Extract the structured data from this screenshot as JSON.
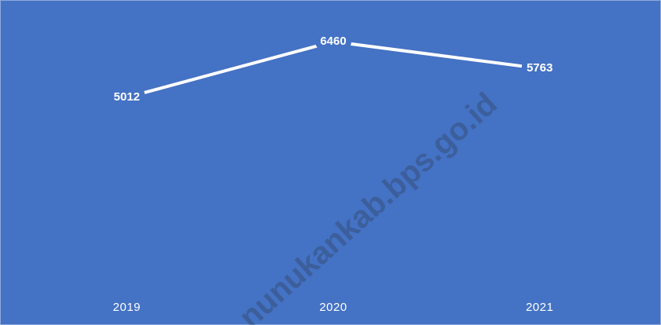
{
  "chart_data": {
    "type": "line",
    "categories": [
      "2019",
      "2020",
      "2021"
    ],
    "values": [
      5012,
      6460,
      5763
    ],
    "color": "#ffffff",
    "background": "#4472c4"
  },
  "watermark": "nunukankab.bps.go.id"
}
